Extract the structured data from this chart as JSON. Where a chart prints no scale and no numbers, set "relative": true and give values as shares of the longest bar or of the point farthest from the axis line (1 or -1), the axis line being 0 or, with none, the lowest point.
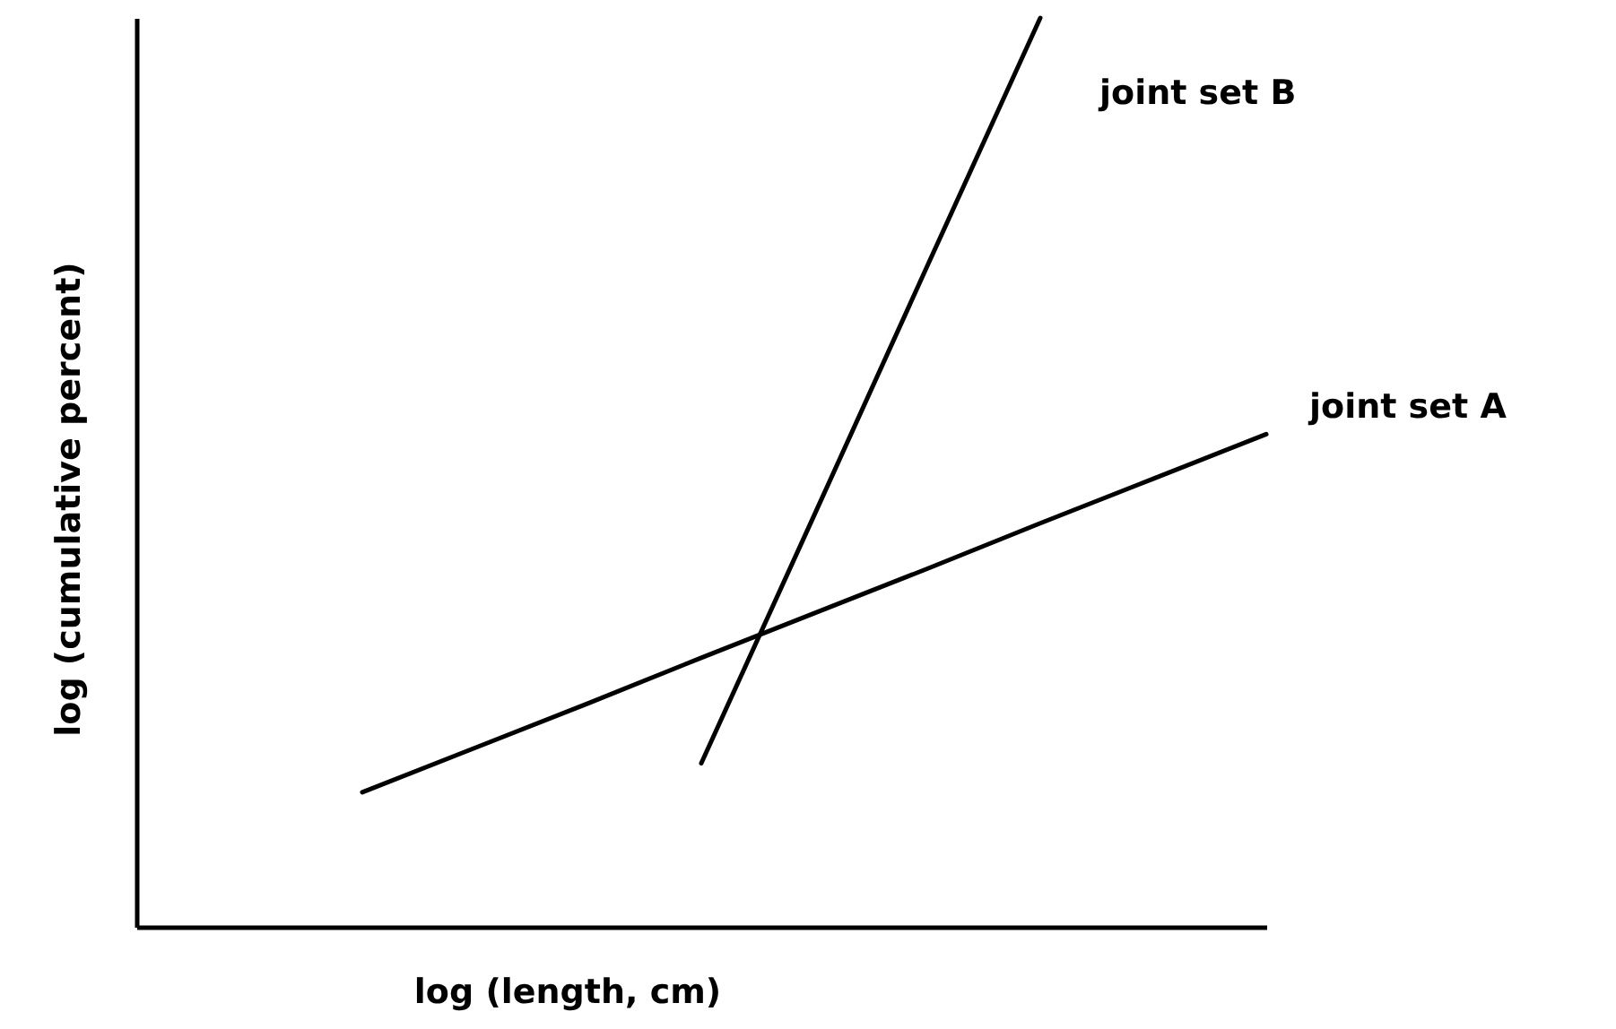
{
  "chart_data": {
    "type": "line",
    "relative": true,
    "xlabel": "log (length, cm)",
    "ylabel": "log (cumulative percent)",
    "categories": [
      null,
      null,
      null,
      null,
      null,
      null,
      null,
      null,
      null,
      null,
      null
    ],
    "series": [
      {
        "name": "joint set A",
        "color": "#000000",
        "values": [
          null,
          null,
          0.148,
          0.197,
          0.246,
          0.296,
          0.345,
          0.394,
          0.444,
          0.493,
          0.542
        ]
      },
      {
        "name": "joint set B",
        "color": "#000000",
        "values": [
          null,
          null,
          null,
          null,
          null,
          0.18,
          0.453,
          0.727,
          1.0,
          null,
          null
        ]
      }
    ],
    "marker": "none",
    "line_style": "solid"
  }
}
